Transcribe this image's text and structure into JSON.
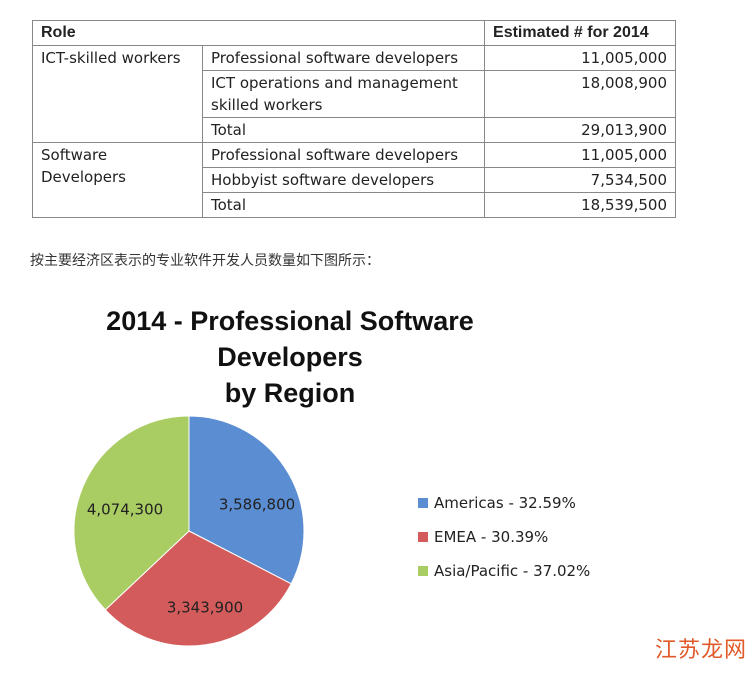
{
  "table": {
    "headers": [
      "Role",
      "Estimated # for 2014"
    ],
    "groups": [
      {
        "role": "ICT-skilled workers",
        "rows": [
          {
            "label": "Professional software developers",
            "value": "11,005,000"
          },
          {
            "label": "ICT operations and management skilled workers",
            "value": "18,008,900"
          },
          {
            "label": "Total",
            "value": "29,013,900"
          }
        ]
      },
      {
        "role": "Software Developers",
        "rows": [
          {
            "label": "Professional software developers",
            "value": "11,005,000"
          },
          {
            "label": "Hobbyist software developers",
            "value": "7,534,500"
          },
          {
            "label": "Total",
            "value": "18,539,500"
          }
        ]
      }
    ]
  },
  "intro": "按主要经济区表示的专业软件开发人员数量如下图所示：",
  "chart_data": {
    "type": "pie",
    "title_line1": "2014 - Professional Software Developers",
    "title_line2": "by Region",
    "legend_position": "right",
    "slices": [
      {
        "name": "Americas",
        "value": 3586800,
        "label": "3,586,800",
        "legend": "Americas - 32.59%",
        "color": "#5b8dd3"
      },
      {
        "name": "EMEA",
        "value": 3343900,
        "label": "3,343,900",
        "legend": "EMEA - 30.39%",
        "color": "#d45b5b"
      },
      {
        "name": "Asia/Pacific",
        "value": 4074300,
        "label": "4,074,300",
        "legend": "Asia/Pacific - 37.02%",
        "color": "#a9cc63"
      }
    ]
  },
  "watermark": "江苏龙网"
}
